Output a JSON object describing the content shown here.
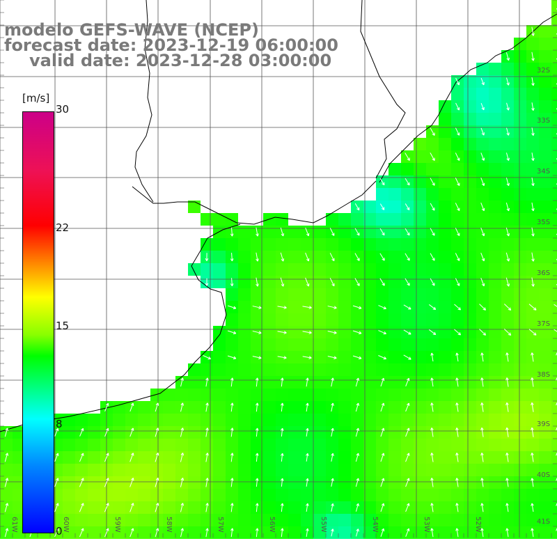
{
  "title": {
    "line1": "modelo GEFS-WAVE (NCEP)",
    "line2": "forecast date: 2023-12-19 06:00:00",
    "line3": "valid date: 2023-12-28 03:00:00"
  },
  "colorbar": {
    "unit": "[m/s]",
    "ticks": [
      {
        "label": "30",
        "value": 30
      },
      {
        "label": "22",
        "value": 22
      },
      {
        "label": "15",
        "value": 15
      },
      {
        "label": "8",
        "value": 8
      },
      {
        "label": "0",
        "value": 0
      }
    ],
    "colors": [
      "#0000ff",
      "#0088ff",
      "#00ffff",
      "#00ff00",
      "#88ff00",
      "#ffff00",
      "#ff8800",
      "#ff0000",
      "#cc0088"
    ]
  },
  "lat_labels": [
    "32S",
    "33S",
    "34S",
    "35S",
    "36S",
    "37S",
    "38S",
    "39S",
    "40S",
    "41S"
  ],
  "lon_labels": [
    "61W",
    "60W",
    "59W",
    "58W",
    "57W",
    "56W",
    "55W",
    "54W",
    "53W",
    "52W"
  ],
  "field": {
    "variable": "wind speed and direction",
    "units": "m/s"
  }
}
